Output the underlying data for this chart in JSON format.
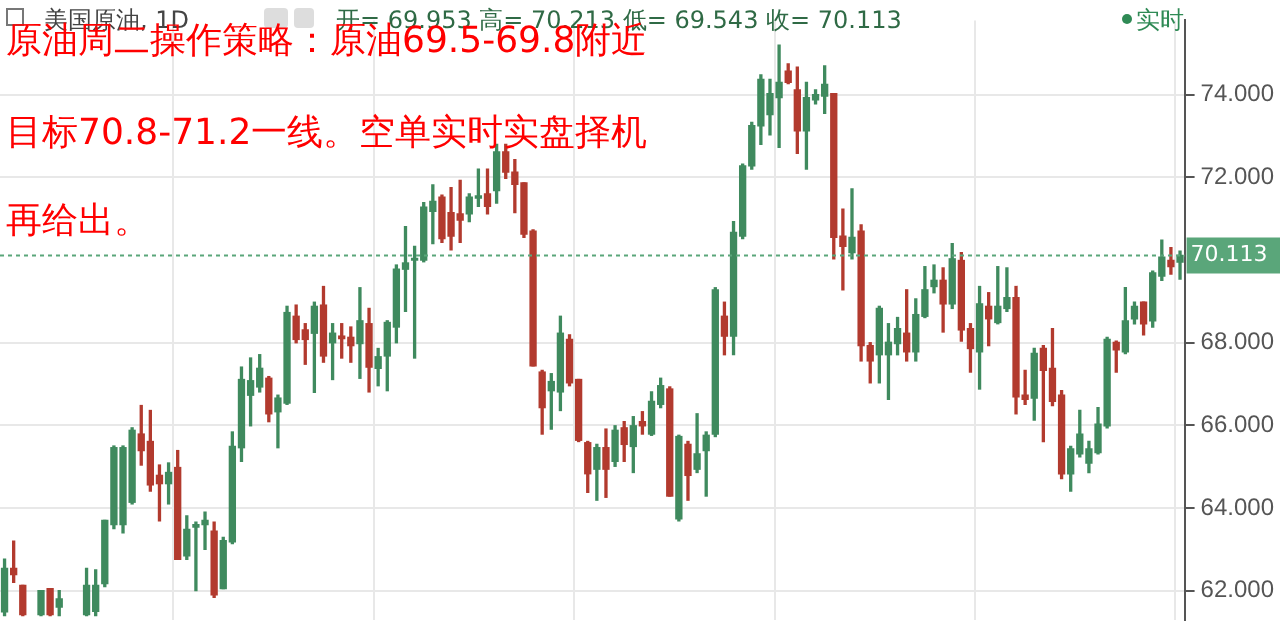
{
  "chart_data": {
    "type": "candlestick",
    "title": "美国原油, 1D",
    "subtitle": "开= 69.953 高= 70.213 低= 69.543 收= 70.113",
    "annotations": [
      "原油周二操作策略：原油69.5-69.8附近",
      "目标70.8-71.2一线。空单实时实盘择机",
      "再给出。",
      "实时"
    ],
    "categories": [
      null,
      null,
      null,
      null,
      null,
      null,
      null,
      null,
      null,
      null,
      null,
      null,
      null,
      null,
      null,
      null,
      null,
      null,
      null,
      null,
      null,
      null,
      null,
      null,
      null,
      null,
      null,
      null,
      null,
      null,
      null,
      null,
      null,
      null,
      null,
      null,
      null,
      null,
      null,
      null,
      null,
      null,
      null,
      null,
      null,
      null,
      null,
      null,
      null,
      null,
      null,
      null,
      null,
      null,
      null,
      null,
      null,
      null,
      null,
      null,
      null,
      null,
      null,
      null,
      null,
      null,
      null,
      null,
      null,
      null,
      null,
      null,
      null,
      null,
      null,
      null,
      null,
      null,
      null,
      null,
      null,
      null,
      null,
      null,
      null,
      null,
      null,
      null,
      null,
      null,
      null,
      null,
      null,
      null,
      null,
      null,
      null,
      null,
      null,
      null,
      null,
      null,
      null,
      null,
      null,
      null,
      null,
      null,
      null,
      null,
      null,
      null,
      null,
      null,
      null,
      null,
      null,
      null,
      null,
      null,
      null,
      null,
      null,
      null,
      null,
      null,
      null,
      null,
      null,
      null
    ],
    "ohlc": [
      [
        61.49,
        62.76,
        61.4,
        62.54
      ],
      [
        62.54,
        63.2,
        62.2,
        62.39
      ],
      [
        62.13,
        62.13,
        61.4,
        61.42
      ],
      null,
      [
        61.42,
        62.0,
        61.4,
        62.0
      ],
      [
        62.05,
        62.05,
        61.4,
        61.42
      ],
      [
        61.6,
        62.0,
        61.4,
        61.8
      ],
      null,
      null,
      [
        61.42,
        62.54,
        61.4,
        62.13
      ],
      [
        61.5,
        62.5,
        61.4,
        62.13
      ],
      [
        62.17,
        63.7,
        62.1,
        63.7
      ],
      [
        63.6,
        65.5,
        63.5,
        65.46
      ],
      [
        63.6,
        65.5,
        63.4,
        65.46
      ],
      [
        64.14,
        65.94,
        64.1,
        65.88
      ],
      [
        65.79,
        66.48,
        65.04,
        65.39
      ],
      [
        65.61,
        66.36,
        64.41,
        64.56
      ],
      [
        64.79,
        65.04,
        63.69,
        64.59
      ],
      [
        64.59,
        65.09,
        64.1,
        64.86
      ],
      [
        64.98,
        65.39,
        62.76,
        62.76
      ],
      [
        62.84,
        63.81,
        62.76,
        63.48
      ],
      [
        63.54,
        63.66,
        62.0,
        63.6
      ],
      [
        63.6,
        63.9,
        63.0,
        63.7
      ],
      [
        63.44,
        63.66,
        61.84,
        61.9
      ],
      [
        62.05,
        63.29,
        62.05,
        63.21
      ],
      [
        63.18,
        65.84,
        63.14,
        65.49
      ],
      [
        65.46,
        67.41,
        65.13,
        67.11
      ],
      [
        66.73,
        67.63,
        65.99,
        67.08
      ],
      [
        66.93,
        67.71,
        66.81,
        67.38
      ],
      [
        67.14,
        67.18,
        66.09,
        66.28
      ],
      [
        66.33,
        66.73,
        65.46,
        66.66
      ],
      [
        66.54,
        68.88,
        66.51,
        68.73
      ],
      [
        68.64,
        68.91,
        68.0,
        68.08
      ],
      [
        68.31,
        68.46,
        67.48,
        68.08
      ],
      [
        68.23,
        68.98,
        66.8,
        68.88
      ],
      [
        68.91,
        69.36,
        67.53,
        67.68
      ],
      [
        68.0,
        68.46,
        67.11,
        68.23
      ],
      [
        68.16,
        68.46,
        67.63,
        68.1
      ],
      [
        68.13,
        68.38,
        67.53,
        67.93
      ],
      [
        67.98,
        69.33,
        67.14,
        68.53
      ],
      [
        68.46,
        68.83,
        66.81,
        67.41
      ],
      [
        67.38,
        67.86,
        66.96,
        67.66
      ],
      [
        67.68,
        68.53,
        66.84,
        68.49
      ],
      [
        68.38,
        69.88,
        68.0,
        69.78
      ],
      [
        69.78,
        70.81,
        68.76,
        69.93
      ],
      [
        70.0,
        70.33,
        67.63,
        70.04
      ],
      [
        70.0,
        71.39,
        69.96,
        71.28
      ],
      [
        71.18,
        71.82,
        70.4,
        71.42
      ],
      [
        71.52,
        71.57,
        70.43,
        70.52
      ],
      [
        71.15,
        71.75,
        70.25,
        70.58
      ],
      [
        71.12,
        71.93,
        70.43,
        70.97
      ],
      [
        71.12,
        71.6,
        70.93,
        71.52
      ],
      [
        71.5,
        72.2,
        71.3,
        71.55
      ],
      [
        71.6,
        72.2,
        71.12,
        71.3
      ],
      [
        71.68,
        72.8,
        71.38,
        72.62
      ],
      [
        72.62,
        72.8,
        71.98,
        72.13
      ],
      [
        72.13,
        72.43,
        71.15,
        71.83
      ],
      [
        71.87,
        71.87,
        70.55,
        70.63
      ],
      [
        70.7,
        70.73,
        67.44,
        67.44
      ],
      [
        67.29,
        67.33,
        65.79,
        66.43
      ],
      [
        66.84,
        67.25,
        65.91,
        67.06
      ],
      [
        66.81,
        68.64,
        66.36,
        68.23
      ],
      [
        68.08,
        68.19,
        66.96,
        67.03
      ],
      [
        67.11,
        67.11,
        65.61,
        65.64
      ],
      [
        65.58,
        65.61,
        64.38,
        64.83
      ],
      [
        64.94,
        65.54,
        64.19,
        65.46
      ],
      [
        65.46,
        65.91,
        64.26,
        64.94
      ],
      [
        65.13,
        65.99,
        65.01,
        65.88
      ],
      [
        65.94,
        66.09,
        65.13,
        65.54
      ],
      [
        65.49,
        66.21,
        64.86,
        65.99
      ],
      [
        66.09,
        66.33,
        65.79,
        65.99
      ],
      [
        65.79,
        66.81,
        65.76,
        66.58
      ],
      [
        66.51,
        67.14,
        66.43,
        66.96
      ],
      [
        66.88,
        66.93,
        64.29,
        64.29
      ],
      [
        63.74,
        65.76,
        63.69,
        65.73
      ],
      [
        65.54,
        65.61,
        64.19,
        64.79
      ],
      [
        64.94,
        66.28,
        64.86,
        65.31
      ],
      [
        65.39,
        65.84,
        64.29,
        65.76
      ],
      [
        65.79,
        69.33,
        65.73,
        69.28
      ],
      [
        68.64,
        68.98,
        67.71,
        68.16
      ],
      [
        68.16,
        70.93,
        67.71,
        70.67
      ],
      [
        70.58,
        72.32,
        70.52,
        72.28
      ],
      [
        72.28,
        73.33,
        72.2,
        73.25
      ],
      [
        73.25,
        74.48,
        72.8,
        74.37
      ],
      [
        73.52,
        74.37,
        73.03,
        74.03
      ],
      [
        73.93,
        75.2,
        72.73,
        74.3
      ],
      [
        74.57,
        74.75,
        74.27,
        74.3
      ],
      [
        74.12,
        74.67,
        72.58,
        73.13
      ],
      [
        73.13,
        74.3,
        72.2,
        73.93
      ],
      [
        73.88,
        74.12,
        73.78,
        74.0
      ],
      [
        73.97,
        74.7,
        73.55,
        74.25
      ],
      [
        74.03,
        74.03,
        70.03,
        70.55
      ],
      [
        70.58,
        71.23,
        69.28,
        70.33
      ],
      [
        70.18,
        71.72,
        70.03,
        70.55
      ],
      [
        70.7,
        70.85,
        67.56,
        67.93
      ],
      [
        67.93,
        68.0,
        67.03,
        67.56
      ],
      [
        67.71,
        68.88,
        67.03,
        68.83
      ],
      [
        67.71,
        68.46,
        66.63,
        68.01
      ],
      [
        67.98,
        68.61,
        67.71,
        68.34
      ],
      [
        68.23,
        69.28,
        67.56,
        67.78
      ],
      [
        67.78,
        69.06,
        67.56,
        68.68
      ],
      [
        68.64,
        69.84,
        68.61,
        69.28
      ],
      [
        69.36,
        69.88,
        69.21,
        69.51
      ],
      [
        69.51,
        69.81,
        68.26,
        68.94
      ],
      [
        68.94,
        70.4,
        68.83,
        70.03
      ],
      [
        69.99,
        70.18,
        68.04,
        68.31
      ],
      [
        68.34,
        68.46,
        67.29,
        67.86
      ],
      [
        67.78,
        69.36,
        66.88,
        68.94
      ],
      [
        68.88,
        69.21,
        67.93,
        68.58
      ],
      [
        68.49,
        69.84,
        68.46,
        68.88
      ],
      [
        68.83,
        69.81,
        68.76,
        69.09
      ],
      [
        69.09,
        69.36,
        66.28,
        66.69
      ],
      [
        66.73,
        67.33,
        66.51,
        66.63
      ],
      [
        66.66,
        67.86,
        66.13,
        67.74
      ],
      [
        67.86,
        67.93,
        65.61,
        67.33
      ],
      [
        67.38,
        68.34,
        66.48,
        66.58
      ],
      [
        66.73,
        66.84,
        64.71,
        64.83
      ],
      [
        64.83,
        65.49,
        64.41,
        65.43
      ],
      [
        65.31,
        66.36,
        65.24,
        65.79
      ],
      [
        65.09,
        65.61,
        64.86,
        65.43
      ],
      [
        65.34,
        66.43,
        65.31,
        66.03
      ],
      [
        65.99,
        68.13,
        65.94,
        68.08
      ],
      [
        68.01,
        68.04,
        67.29,
        67.83
      ],
      [
        67.78,
        69.33,
        67.74,
        68.53
      ],
      [
        68.58,
        68.98,
        68.46,
        68.88
      ],
      [
        68.98,
        68.98,
        68.19,
        68.46
      ],
      [
        68.53,
        69.73,
        68.38,
        69.69
      ],
      [
        69.61,
        70.48,
        69.51,
        70.07
      ],
      [
        69.99,
        70.3,
        69.66,
        69.84
      ],
      [
        69.953,
        70.213,
        69.543,
        70.113
      ]
    ],
    "ylim": [
      61.3,
      75.8
    ],
    "yticks": [
      {
        "value": 62,
        "label": "62.000"
      },
      {
        "value": 64,
        "label": "64.000"
      },
      {
        "value": 66,
        "label": "66.000"
      },
      {
        "value": 68,
        "label": "68.000"
      },
      {
        "value": 72,
        "label": "72.000"
      },
      {
        "value": 74,
        "label": "74.000"
      }
    ],
    "ref_lines": [
      {
        "axis": "y",
        "value": 70.113,
        "label": "70.113",
        "color": "#5aa67a",
        "line_style": "dotted"
      }
    ],
    "grid": true,
    "tick_labels": "y"
  }
}
